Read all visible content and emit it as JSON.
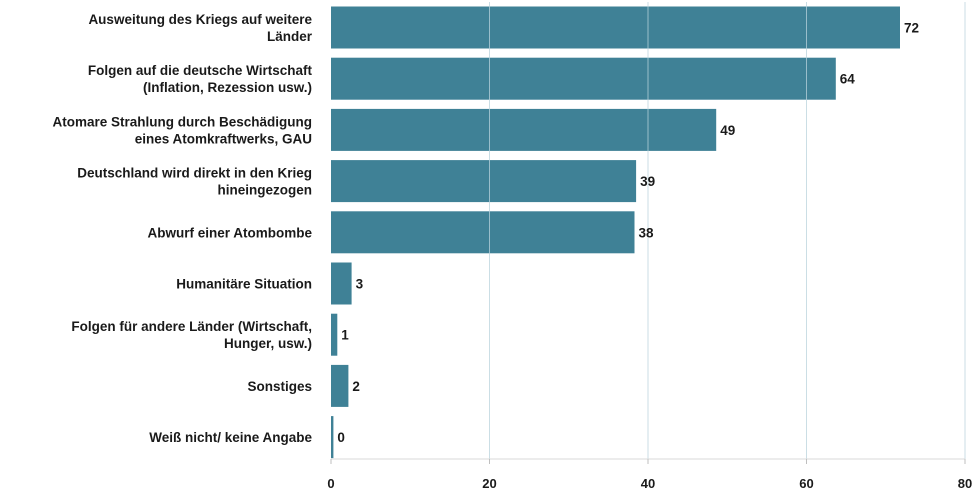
{
  "chart_data": {
    "type": "bar",
    "orientation": "horizontal",
    "categories": [
      [
        "Ausweitung des Kriegs auf weitere",
        "Länder"
      ],
      [
        "Folgen auf die deutsche Wirtschaft",
        "(Inflation, Rezession usw.)"
      ],
      [
        "Atomare Strahlung durch Beschädigung",
        "eines Atomkraftwerks, GAU"
      ],
      [
        "Deutschland wird direkt in den Krieg",
        "hineingezogen"
      ],
      [
        "Abwurf einer Atombombe"
      ],
      [
        "Humanitäre Situation"
      ],
      [
        "Folgen für andere Länder (Wirtschaft,",
        "Hunger, usw.)"
      ],
      [
        "Sonstiges"
      ],
      [
        "Weiß nicht/ keine Angabe"
      ]
    ],
    "values": [
      72,
      64,
      49,
      39,
      38,
      3,
      1,
      2,
      0
    ],
    "bar_lengths": [
      71.8,
      63.7,
      48.6,
      38.5,
      38.3,
      2.6,
      0.8,
      2.2,
      0.3
    ],
    "xlim": [
      0,
      80
    ],
    "xticks": [
      0,
      20,
      40,
      60,
      80
    ],
    "grid": "vertical",
    "legend": "none",
    "title": "",
    "xlabel": "",
    "ylabel": "",
    "colors": {
      "bar": "#3f8196",
      "grid": "#b9d3dc",
      "text": "#1a1a1a"
    }
  }
}
